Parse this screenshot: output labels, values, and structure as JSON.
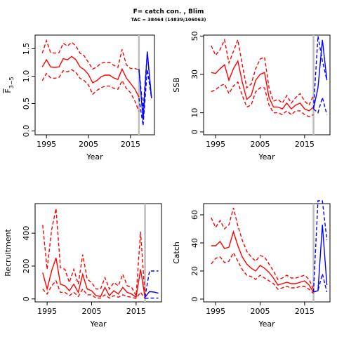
{
  "figure": {
    "title": "F= catch con. , Blim",
    "subtitle": "TAC = 38464 (14839;106063)"
  },
  "colors": {
    "historic": "#ff0000",
    "forecast": "#0000ff",
    "divider": "#bebebe",
    "axis": "#000000"
  },
  "chart_data": [
    {
      "type": "line",
      "id": "fbar",
      "ylabel": "F̄3–5",
      "ylabel_main": "F",
      "ylabel_sub": "3−5",
      "xlabel": "Year",
      "xlim": [
        1992.3,
        2020.7
      ],
      "ylim": [
        -0.07,
        1.75
      ],
      "xticks": [
        1995,
        2005,
        2015
      ],
      "yticks": [
        0.0,
        0.5,
        1.0,
        1.5
      ],
      "ytick_labels": [
        "0.0",
        "0.5",
        "1.0",
        "1.5"
      ],
      "divider_year": 2017,
      "years": [
        1994,
        1995,
        1996,
        1997,
        1998,
        1999,
        2000,
        2001,
        2002,
        2003,
        2004,
        2005,
        2006,
        2007,
        2008,
        2009,
        2010,
        2011,
        2012,
        2013,
        2014,
        2015,
        2016,
        2017
      ],
      "series": [
        {
          "role": "median",
          "values": [
            1.17,
            1.3,
            1.17,
            1.16,
            1.17,
            1.32,
            1.3,
            1.36,
            1.3,
            1.17,
            1.12,
            1.03,
            0.88,
            0.92,
            0.99,
            1.02,
            1.02,
            0.97,
            0.94,
            1.13,
            0.97,
            0.87,
            0.77,
            0.62
          ]
        },
        {
          "role": "upper",
          "values": [
            1.42,
            1.65,
            1.43,
            1.42,
            1.43,
            1.6,
            1.55,
            1.62,
            1.55,
            1.42,
            1.37,
            1.25,
            1.13,
            1.17,
            1.24,
            1.25,
            1.25,
            1.2,
            1.16,
            1.49,
            1.21,
            1.14,
            1.14,
            1.12
          ]
        },
        {
          "role": "lower",
          "values": [
            0.92,
            1.05,
            0.97,
            0.96,
            0.98,
            1.1,
            1.08,
            1.12,
            1.07,
            0.96,
            0.92,
            0.84,
            0.67,
            0.74,
            0.79,
            0.82,
            0.82,
            0.78,
            0.76,
            0.92,
            0.78,
            0.7,
            0.55,
            0.36
          ]
        }
      ],
      "forecast_years": [
        2017,
        2018,
        2019,
        2020
      ],
      "forecast": [
        {
          "role": "median",
          "values": [
            1.13,
            0.2,
            1.45,
            0.6
          ]
        },
        {
          "role": "upper",
          "values": [
            1.13,
            0.38,
            1.42,
            0.6
          ]
        },
        {
          "role": "lower",
          "values": [
            0.6,
            0.1,
            1.12,
            0.6
          ]
        }
      ]
    },
    {
      "type": "line",
      "id": "ssb",
      "ylabel": "SSB",
      "xlabel": "Year",
      "xlim": [
        1992.3,
        2020.7
      ],
      "ylim": [
        -1.5,
        50.5
      ],
      "xticks": [
        1995,
        2005,
        2015
      ],
      "yticks": [
        0,
        10,
        30,
        50
      ],
      "ytick_labels": [
        "0",
        "10",
        "30",
        "50"
      ],
      "divider_year": 2017,
      "years": [
        1994,
        1995,
        1996,
        1997,
        1998,
        1999,
        2000,
        2001,
        2002,
        2003,
        2004,
        2005,
        2006,
        2007,
        2008,
        2009,
        2010,
        2011,
        2012,
        2013,
        2014,
        2015,
        2016,
        2017
      ],
      "series": [
        {
          "role": "median",
          "values": [
            31,
            30.5,
            33,
            35,
            27,
            33,
            37,
            26,
            17,
            19,
            27,
            30,
            31,
            18,
            13,
            13,
            12,
            15,
            12,
            14,
            15,
            12,
            11,
            13
          ]
        },
        {
          "role": "upper",
          "values": [
            45,
            40,
            43,
            48,
            36,
            42,
            48,
            35,
            23,
            25,
            33,
            38,
            39,
            23,
            16,
            17,
            15,
            19,
            15,
            18,
            20,
            16,
            14,
            19
          ]
        },
        {
          "role": "lower",
          "values": [
            21,
            22,
            24,
            25,
            20,
            24,
            26,
            19,
            13,
            14,
            21,
            23,
            23,
            14,
            10,
            10,
            9,
            11,
            9,
            11,
            11,
            9,
            8,
            9
          ]
        }
      ],
      "forecast_years": [
        2017,
        2018,
        2019,
        2020
      ],
      "forecast": [
        {
          "role": "median",
          "values": [
            12,
            23,
            48,
            27
          ]
        },
        {
          "role": "upper",
          "values": [
            12,
            50,
            37,
            27
          ]
        },
        {
          "role": "lower",
          "values": [
            12,
            10,
            18,
            9
          ]
        }
      ]
    },
    {
      "type": "line",
      "id": "recruitment",
      "ylabel": "Recruitment",
      "xlabel": "Year",
      "xlim": [
        1992.3,
        2020.7
      ],
      "ylim": [
        -18,
        580
      ],
      "xticks": [
        1995,
        2005,
        2015
      ],
      "yticks": [
        0,
        200,
        400
      ],
      "ytick_labels": [
        "0",
        "200",
        "400"
      ],
      "divider_year": 2017,
      "years": [
        1994,
        1995,
        1996,
        1997,
        1998,
        1999,
        2000,
        2001,
        2002,
        2003,
        2004,
        2005,
        2006,
        2007,
        2008,
        2009,
        2010,
        2011,
        2012,
        2013,
        2014,
        2015,
        2016,
        2017
      ],
      "series": [
        {
          "role": "median",
          "values": [
            160,
            60,
            170,
            250,
            90,
            80,
            50,
            90,
            40,
            150,
            60,
            50,
            20,
            15,
            70,
            20,
            50,
            30,
            70,
            40,
            30,
            10,
            180,
            10
          ]
        },
        {
          "role": "upper",
          "values": [
            450,
            180,
            420,
            550,
            190,
            180,
            100,
            180,
            90,
            270,
            120,
            100,
            60,
            60,
            130,
            60,
            100,
            80,
            150,
            80,
            70,
            20,
            410,
            20
          ]
        },
        {
          "role": "lower",
          "values": [
            60,
            30,
            80,
            110,
            40,
            40,
            20,
            40,
            15,
            60,
            25,
            25,
            5,
            5,
            25,
            5,
            20,
            10,
            25,
            15,
            10,
            3,
            40,
            3
          ]
        }
      ],
      "forecast_years": [
        2017,
        2018,
        2019,
        2020
      ],
      "forecast": [
        {
          "role": "median",
          "values": [
            10,
            45,
            42,
            35
          ]
        },
        {
          "role": "upper",
          "values": [
            10,
            170,
            170,
            170
          ]
        },
        {
          "role": "lower",
          "values": [
            3,
            5,
            5,
            5
          ]
        }
      ]
    },
    {
      "type": "line",
      "id": "catch",
      "ylabel": "Catch",
      "xlabel": "Year",
      "xlim": [
        1992.3,
        2020.7
      ],
      "ylim": [
        -2,
        68
      ],
      "xticks": [
        1995,
        2005,
        2015
      ],
      "yticks": [
        0,
        20,
        40,
        60
      ],
      "ytick_labels": [
        "0",
        "20",
        "40",
        "60"
      ],
      "divider_year": 2017,
      "years": [
        1994,
        1995,
        1996,
        1997,
        1998,
        1999,
        2000,
        2001,
        2002,
        2003,
        2004,
        2005,
        2006,
        2007,
        2008,
        2009,
        2010,
        2011,
        2012,
        2013,
        2014,
        2015,
        2016,
        2017
      ],
      "series": [
        {
          "role": "median",
          "values": [
            38,
            38,
            41,
            36,
            37,
            48,
            38,
            30,
            25,
            22,
            20,
            24,
            22,
            19,
            15,
            10,
            11,
            12,
            11,
            11,
            12,
            13,
            10,
            5
          ]
        },
        {
          "role": "upper",
          "values": [
            58,
            51,
            56,
            50,
            53,
            65,
            52,
            42,
            34,
            30,
            27,
            31,
            30,
            25,
            20,
            14,
            15,
            17,
            15,
            15,
            16,
            17,
            14,
            7
          ]
        },
        {
          "role": "lower",
          "values": [
            25,
            29,
            30,
            26,
            27,
            33,
            27,
            21,
            17,
            16,
            14,
            17,
            15,
            13,
            11,
            7,
            8,
            9,
            8,
            8,
            9,
            9,
            7,
            4
          ]
        }
      ],
      "forecast_years": [
        2017,
        2018,
        2019,
        2020
      ],
      "forecast": [
        {
          "role": "median",
          "values": [
            5,
            6,
            53,
            10
          ]
        },
        {
          "role": "upper",
          "values": [
            5,
            70,
            70,
            42
          ]
        },
        {
          "role": "lower",
          "values": [
            5,
            6,
            18,
            5
          ]
        }
      ]
    }
  ]
}
